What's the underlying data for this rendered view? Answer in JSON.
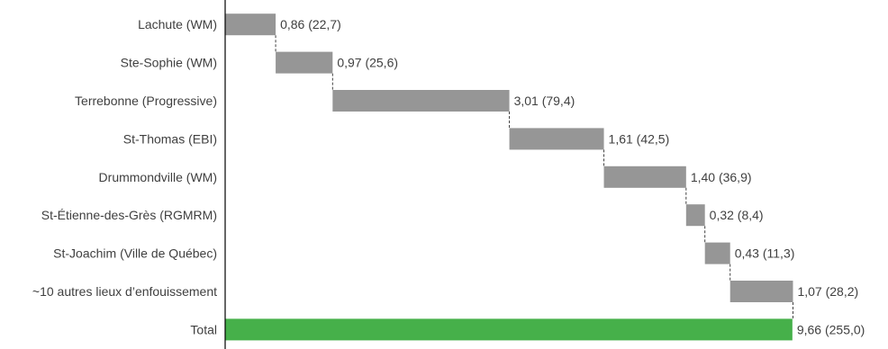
{
  "chart_data": {
    "type": "bar",
    "subtype": "horizontal-waterfall",
    "title": "",
    "xlabel": "",
    "ylabel": "",
    "xlim": [
      0,
      9.66
    ],
    "grid": false,
    "legend": "none",
    "colors": {
      "step": "#969696",
      "total": "#46b04a",
      "axis": "#000000",
      "connector": "#404040",
      "text": "#404040"
    },
    "categories": [
      "Lachute (WM)",
      "Ste-Sophie (WM)",
      "Terrebonne (Progressive)",
      "St-Thomas (EBI)",
      "Drummondville (WM)",
      "St-Étienne-des-Grès (RGMRM)",
      "St-Joachim (Ville de Québec)",
      "~10 autres lieux d’enfouissement",
      "Total"
    ],
    "values": [
      0.86,
      0.97,
      3.01,
      1.61,
      1.4,
      0.32,
      0.43,
      1.07,
      9.66
    ],
    "secondary_values": [
      22.7,
      25.6,
      79.4,
      42.5,
      36.9,
      8.4,
      11.3,
      28.2,
      255.0
    ],
    "data_labels": [
      "0,86 (22,7)",
      "0,97 (25,6)",
      "3,01 (79,4)",
      "1,61 (42,5)",
      "1,40 (36,9)",
      "0,32 (8,4)",
      "0,43 (11,3)",
      "1,07 (28,2)",
      "9,66 (255,0)"
    ],
    "total_index": 8
  }
}
